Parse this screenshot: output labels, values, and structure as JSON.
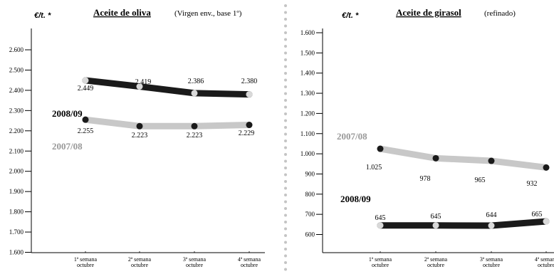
{
  "chart_data": [
    {
      "type": "line",
      "title": "Aceite de oliva",
      "subtitle": "(Virgen env., base 1º)",
      "unit": "€/t. *",
      "categories": [
        "1ª semana octubre",
        "2ª semana octubre",
        "3ª semana octubre",
        "4ª semana octubre"
      ],
      "yticks": [
        1600,
        1700,
        1800,
        1900,
        2000,
        2100,
        2200,
        2300,
        2400,
        2500,
        2600
      ],
      "ytick_labels": [
        "1.600",
        "1.700",
        "1.800",
        "1.900",
        "2.000",
        "2.100",
        "2.200",
        "2.300",
        "2.400",
        "2.500",
        "2.600"
      ],
      "ylim": [
        1600,
        2700
      ],
      "series": [
        {
          "name": "2008/09",
          "values": [
            2449,
            2419,
            2386,
            2380
          ],
          "labels": [
            "2.449",
            "2.419",
            "2.386",
            "2.380"
          ],
          "line_color": "#1a1a1a",
          "marker_color": "#d9d9d9",
          "name_color": "#000000"
        },
        {
          "name": "2007/08",
          "values": [
            2255,
            2223,
            2223,
            2229
          ],
          "labels": [
            "2.255",
            "2.223",
            "2.223",
            "2.229"
          ],
          "line_color": "#c8c8c8",
          "marker_color": "#1a1a1a",
          "name_color": "#999999"
        }
      ]
    },
    {
      "type": "line",
      "title": "Aceite de girasol",
      "subtitle": "(refinado)",
      "unit": "€/t. *",
      "categories": [
        "1ª semana octubre",
        "2ª semana octubre",
        "3ª semana octubre",
        "4ª semana octubre"
      ],
      "yticks": [
        600,
        700,
        800,
        900,
        1000,
        1100,
        1200,
        1300,
        1400,
        1500,
        1600
      ],
      "ytick_labels": [
        "600",
        "700",
        "800",
        "900",
        "1.000",
        "1.100",
        "1.200",
        "1.300",
        "1.400",
        "1.500",
        "1.600"
      ],
      "ylim": [
        500,
        1700
      ],
      "series": [
        {
          "name": "2007/08",
          "values": [
            1025,
            978,
            965,
            932
          ],
          "labels": [
            "1.025",
            "978",
            "965",
            "932"
          ],
          "line_color": "#c8c8c8",
          "marker_color": "#1a1a1a",
          "name_color": "#999999"
        },
        {
          "name": "2008/09",
          "values": [
            645,
            645,
            644,
            665
          ],
          "labels": [
            "645",
            "645",
            "644",
            "665"
          ],
          "line_color": "#1a1a1a",
          "marker_color": "#d9d9d9",
          "name_color": "#000000"
        }
      ]
    }
  ]
}
